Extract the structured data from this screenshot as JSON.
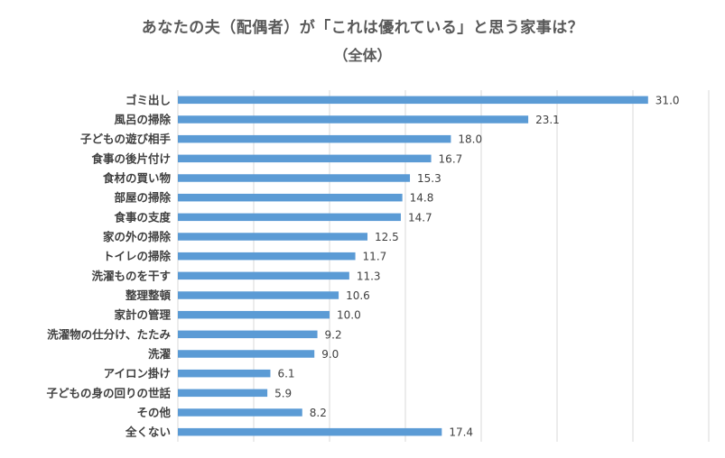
{
  "colors": {
    "bar": "#5B9BD5",
    "grid": "#D9D9D9",
    "text": "#404040",
    "title": "#595959"
  },
  "chart_data": {
    "type": "bar",
    "orientation": "horizontal",
    "title": "あなたの夫（配偶者）が「これは優れている」と思う家事は？",
    "subtitle": "（全体）",
    "categories": [
      "ゴミ出し",
      "風呂の掃除",
      "子どもの遊び相手",
      "食事の後片付け",
      "食材の買い物",
      "部屋の掃除",
      "食事の支度",
      "家の外の掃除",
      "トイレの掃除",
      "洗濯ものを干す",
      "整理整頓",
      "家計の管理",
      "洗濯物の仕分け、たたみ",
      "洗濯",
      "アイロン掛け",
      "子どもの身の回りの世話",
      "その他",
      "全くない"
    ],
    "values": [
      31.0,
      23.1,
      18.0,
      16.7,
      15.3,
      14.8,
      14.7,
      12.5,
      11.7,
      11.3,
      10.6,
      10.0,
      9.2,
      9.0,
      6.1,
      5.9,
      8.2,
      17.4
    ],
    "value_labels": [
      "31.0",
      "23.1",
      "18.0",
      "16.7",
      "15.3",
      "14.8",
      "14.7",
      "12.5",
      "11.7",
      "11.3",
      "10.6",
      "10.0",
      "9.2",
      "9.0",
      "6.1",
      "5.9",
      "8.2",
      "17.4"
    ],
    "xlim": [
      0,
      35
    ],
    "grid": true,
    "x_tick_labels_shown": false
  }
}
